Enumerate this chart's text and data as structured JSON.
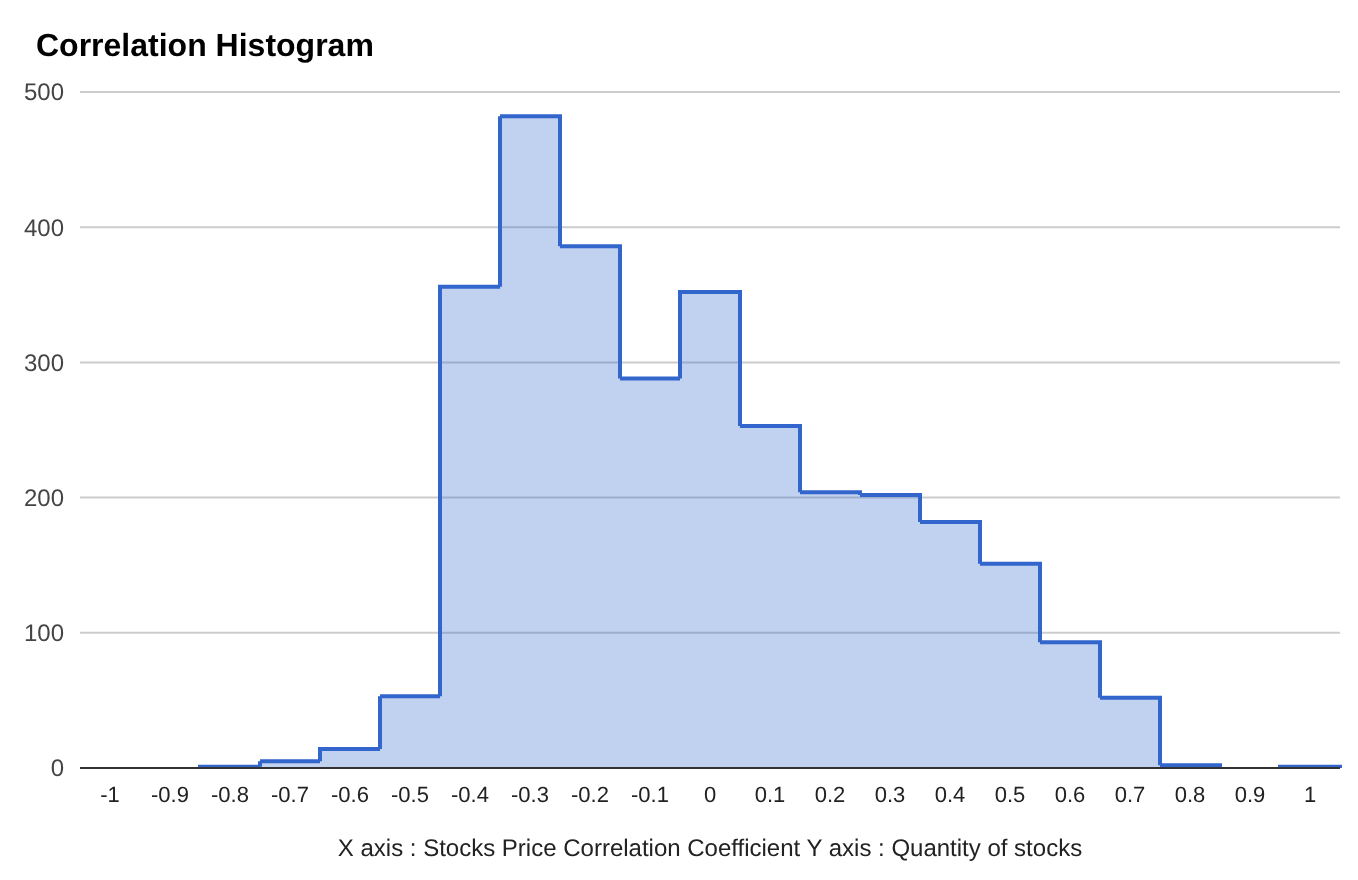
{
  "chart_data": {
    "type": "histogram",
    "title": "Correlation Histogram",
    "xlabel": "X axis : Stocks Price Correlation Coefficient  Y axis : Quantity of stocks",
    "bins": [
      -1.05,
      -0.95,
      -0.85,
      -0.75,
      -0.65,
      -0.55,
      -0.45,
      -0.35,
      -0.25,
      -0.15,
      -0.05,
      0.05,
      0.15,
      0.25,
      0.35,
      0.45,
      0.55,
      0.65,
      0.75,
      0.85,
      0.95,
      1.05
    ],
    "values": [
      0,
      0,
      1,
      5,
      14,
      53,
      356,
      482,
      386,
      288,
      352,
      253,
      204,
      202,
      182,
      151,
      93,
      52,
      2,
      0,
      1
    ],
    "color": "#3366cc",
    "xlim": [
      -1.05,
      1.05
    ],
    "xticks": [
      -1,
      -0.9,
      -0.8,
      -0.7,
      -0.6,
      -0.5,
      -0.4,
      -0.3,
      -0.2,
      -0.1,
      0,
      0.1,
      0.2,
      0.3,
      0.4,
      0.5,
      0.6,
      0.7,
      0.8,
      0.9,
      1
    ],
    "ylim": [
      0,
      500
    ],
    "yticks": [
      0,
      100,
      200,
      300,
      400,
      500
    ],
    "grid": "y"
  }
}
